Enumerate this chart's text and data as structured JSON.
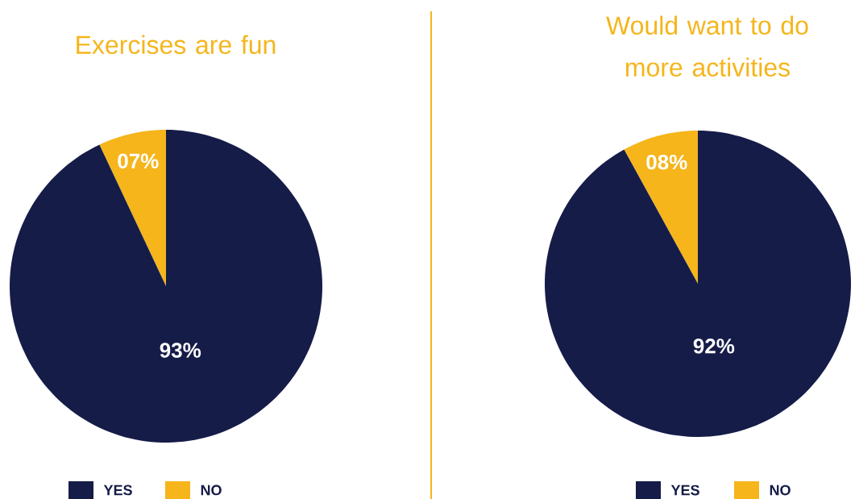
{
  "chart_data": [
    {
      "type": "pie",
      "title": "Exercises are fun",
      "categories": [
        "YES",
        "NO"
      ],
      "values": [
        93,
        7
      ],
      "colors": [
        "#161c48",
        "#f5b51b"
      ],
      "value_labels": [
        "93%",
        "07%"
      ],
      "legend": "bottom"
    },
    {
      "type": "pie",
      "title": "Would want to do more activities",
      "categories": [
        "YES",
        "NO"
      ],
      "values": [
        92,
        8
      ],
      "colors": [
        "#161c48",
        "#f5b51b"
      ],
      "value_labels": [
        "92%",
        "08%"
      ],
      "legend": "bottom"
    }
  ]
}
